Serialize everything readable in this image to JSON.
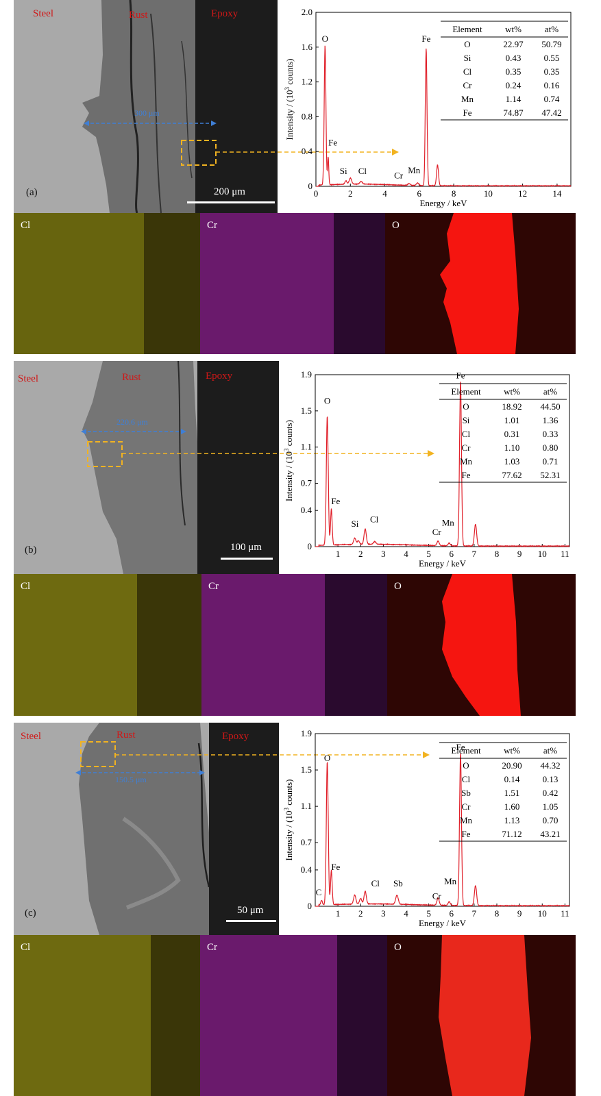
{
  "colors": {
    "spectrum": "#e0202a",
    "annotation_arrow": "#f2b321",
    "scale_arrow": "#3f7fd6",
    "zone_label": "#d01818",
    "cl_map": "#d2cc22",
    "cr_map": "#c81ec8",
    "o_map": "#ff1a14"
  },
  "axis_common": {
    "xlabel": "Energy / keV",
    "ylabel_main": "Intensity / (10",
    "ylabel_sup": "3",
    "ylabel_end": " counts)"
  },
  "panels": [
    {
      "label": "(a)",
      "zones": {
        "steel": "Steel",
        "rust": "Rust",
        "epoxy": "Epoxy"
      },
      "scale_bar": "200 μm",
      "thickness": "300 μm",
      "maps": [
        "Cl",
        "Cr",
        "O"
      ],
      "table": {
        "headers": [
          "Element",
          "wt%",
          "at%"
        ],
        "rows": [
          [
            "O",
            "22.97",
            "50.79"
          ],
          [
            "Si",
            "0.43",
            "0.55"
          ],
          [
            "Cl",
            "0.35",
            "0.35"
          ],
          [
            "Cr",
            "0.24",
            "0.16"
          ],
          [
            "Mn",
            "1.14",
            "0.74"
          ],
          [
            "Fe",
            "74.87",
            "47.42"
          ]
        ]
      },
      "chart_data": {
        "type": "line",
        "xlabel": "Energy / keV",
        "ylabel": "Intensity / (10³ counts)",
        "xlim": [
          0,
          14.8
        ],
        "ylim": [
          0,
          2.0
        ],
        "xticks": [
          0,
          2,
          4,
          6,
          8,
          10,
          12,
          14
        ],
        "yticks": [
          0,
          0.4,
          0.8,
          1.2,
          1.6,
          2.0
        ],
        "ytick_labels": [
          "0",
          "0.4",
          "0.8",
          "1.2",
          "1.6",
          "2.0"
        ],
        "peaks": [
          {
            "e": 0.53,
            "h": 1.6,
            "w": 0.07
          },
          {
            "e": 0.71,
            "h": 0.32,
            "w": 0.05
          },
          {
            "e": 1.74,
            "h": 0.04,
            "w": 0.08
          },
          {
            "e": 2.0,
            "h": 0.07,
            "w": 0.1
          },
          {
            "e": 2.62,
            "h": 0.03,
            "w": 0.1
          },
          {
            "e": 5.41,
            "h": 0.02,
            "w": 0.1
          },
          {
            "e": 5.9,
            "h": 0.03,
            "w": 0.1
          },
          {
            "e": 6.4,
            "h": 1.58,
            "w": 0.07
          },
          {
            "e": 7.06,
            "h": 0.24,
            "w": 0.08
          }
        ],
        "peak_labels": [
          {
            "text": "O",
            "e": 0.53,
            "y": 1.66
          },
          {
            "text": "Fe",
            "e": 0.98,
            "y": 0.47
          },
          {
            "text": "Si",
            "e": 1.6,
            "y": 0.14
          },
          {
            "text": "Cl",
            "e": 2.7,
            "y": 0.14
          },
          {
            "text": "Cr",
            "e": 4.8,
            "y": 0.09
          },
          {
            "text": "Mn",
            "e": 5.7,
            "y": 0.15
          },
          {
            "text": "Fe",
            "e": 6.4,
            "y": 1.66
          }
        ]
      }
    },
    {
      "label": "(b)",
      "zones": {
        "steel": "Steel",
        "rust": "Rust",
        "epoxy": "Epoxy"
      },
      "scale_bar": "100 μm",
      "thickness": "220.6 μm",
      "maps": [
        "Cl",
        "Cr",
        "O"
      ],
      "table": {
        "headers": [
          "Element",
          "wt%",
          "at%"
        ],
        "rows": [
          [
            "O",
            "18.92",
            "44.50"
          ],
          [
            "Si",
            "1.01",
            "1.36"
          ],
          [
            "Cl",
            "0.31",
            "0.33"
          ],
          [
            "Cr",
            "1.10",
            "0.80"
          ],
          [
            "Mn",
            "1.03",
            "0.71"
          ],
          [
            "Fe",
            "77.62",
            "52.31"
          ]
        ]
      },
      "chart_data": {
        "type": "line",
        "xlabel": "Energy / keV",
        "ylabel": "Intensity / (10³ counts)",
        "xlim": [
          0,
          11.2
        ],
        "ylim": [
          0,
          1.9
        ],
        "xticks": [
          1,
          2,
          3,
          4,
          5,
          6,
          7,
          8,
          9,
          10,
          11
        ],
        "yticks": [
          0,
          0.4,
          0.7,
          1.1,
          1.5,
          1.9
        ],
        "ytick_labels": [
          "0",
          "0.4",
          "0.7",
          "1.1",
          "1.5",
          "1.9"
        ],
        "peaks": [
          {
            "e": 0.53,
            "h": 1.43,
            "w": 0.06
          },
          {
            "e": 0.71,
            "h": 0.4,
            "w": 0.05
          },
          {
            "e": 1.74,
            "h": 0.07,
            "w": 0.07
          },
          {
            "e": 1.9,
            "h": 0.04,
            "w": 0.07
          },
          {
            "e": 2.2,
            "h": 0.17,
            "w": 0.07
          },
          {
            "e": 2.62,
            "h": 0.03,
            "w": 0.08
          },
          {
            "e": 5.41,
            "h": 0.05,
            "w": 0.07
          },
          {
            "e": 5.9,
            "h": 0.03,
            "w": 0.07
          },
          {
            "e": 6.4,
            "h": 1.82,
            "w": 0.06
          },
          {
            "e": 7.06,
            "h": 0.24,
            "w": 0.07
          }
        ],
        "peak_labels": [
          {
            "text": "O",
            "e": 0.53,
            "y": 1.58
          },
          {
            "text": "Fe",
            "e": 0.9,
            "y": 0.47
          },
          {
            "text": "Si",
            "e": 1.75,
            "y": 0.22
          },
          {
            "text": "Cl",
            "e": 2.6,
            "y": 0.27
          },
          {
            "text": "Cr",
            "e": 5.35,
            "y": 0.13
          },
          {
            "text": "Mn",
            "e": 5.85,
            "y": 0.23
          },
          {
            "text": "Fe",
            "e": 6.4,
            "y": 1.86
          }
        ]
      }
    },
    {
      "label": "(c)",
      "zones": {
        "steel": "Steel",
        "rust": "Rust",
        "epoxy": "Epoxy"
      },
      "scale_bar": "50 μm",
      "thickness": "150.5 μm",
      "maps": [
        "Cl",
        "Cr",
        "O"
      ],
      "table": {
        "headers": [
          "Element",
          "wt%",
          "at%"
        ],
        "rows": [
          [
            "O",
            "20.90",
            "44.32"
          ],
          [
            "Cl",
            "0.14",
            "0.13"
          ],
          [
            "Sb",
            "1.51",
            "0.42"
          ],
          [
            "Cr",
            "1.60",
            "1.05"
          ],
          [
            "Mn",
            "1.13",
            "0.70"
          ],
          [
            "Fe",
            "71.12",
            "43.21"
          ]
        ]
      },
      "chart_data": {
        "type": "line",
        "xlabel": "Energy / keV",
        "ylabel": "Intensity / (10³ counts)",
        "xlim": [
          0,
          11.2
        ],
        "ylim": [
          0,
          1.9
        ],
        "xticks": [
          1,
          2,
          3,
          4,
          5,
          6,
          7,
          8,
          9,
          10,
          11
        ],
        "yticks": [
          0,
          0.4,
          0.7,
          1.1,
          1.5,
          1.9
        ],
        "ytick_labels": [
          "0",
          "0.4",
          "0.7",
          "1.1",
          "1.5",
          "1.9"
        ],
        "peaks": [
          {
            "e": 0.28,
            "h": 0.05,
            "w": 0.05
          },
          {
            "e": 0.53,
            "h": 1.58,
            "w": 0.06
          },
          {
            "e": 0.71,
            "h": 0.38,
            "w": 0.05
          },
          {
            "e": 1.74,
            "h": 0.1,
            "w": 0.07
          },
          {
            "e": 2.0,
            "h": 0.06,
            "w": 0.07
          },
          {
            "e": 2.2,
            "h": 0.14,
            "w": 0.07
          },
          {
            "e": 3.6,
            "h": 0.1,
            "w": 0.08
          },
          {
            "e": 5.41,
            "h": 0.08,
            "w": 0.07
          },
          {
            "e": 5.9,
            "h": 0.04,
            "w": 0.07
          },
          {
            "e": 6.4,
            "h": 1.68,
            "w": 0.06
          },
          {
            "e": 7.06,
            "h": 0.22,
            "w": 0.07
          }
        ],
        "peak_labels": [
          {
            "text": "C",
            "e": 0.15,
            "y": 0.12
          },
          {
            "text": "O",
            "e": 0.53,
            "y": 1.6
          },
          {
            "text": "Fe",
            "e": 0.9,
            "y": 0.4
          },
          {
            "text": "Cl",
            "e": 2.65,
            "y": 0.22
          },
          {
            "text": "Sb",
            "e": 3.65,
            "y": 0.22
          },
          {
            "text": "Cr",
            "e": 5.35,
            "y": 0.08
          },
          {
            "text": "Mn",
            "e": 5.95,
            "y": 0.24
          },
          {
            "text": "Fe",
            "e": 6.4,
            "y": 1.72
          }
        ]
      }
    }
  ]
}
